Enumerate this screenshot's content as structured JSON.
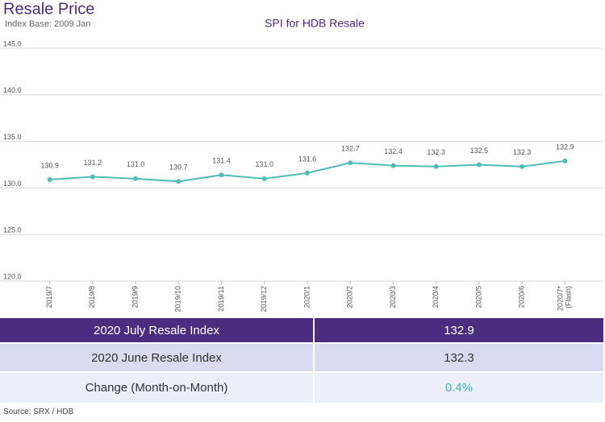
{
  "header": {
    "title": "Resale Price",
    "subtitle": "Index Base: 2009 Jan"
  },
  "chart_data": {
    "type": "line",
    "title": "SPI for HDB Resale",
    "categories": [
      "2019/7",
      "2019/8",
      "2019/9",
      "2019/10",
      "2019/11",
      "2019/12",
      "2020/1",
      "2020/2",
      "2020/3",
      "2020/4",
      "2020/5",
      "2020/6",
      "2020/7* (Flash)"
    ],
    "values": [
      130.9,
      131.2,
      131.0,
      130.7,
      131.4,
      131.0,
      131.6,
      132.7,
      132.4,
      132.3,
      132.5,
      132.3,
      132.9
    ],
    "value_labels": [
      "130.9",
      "131.2",
      "131.0",
      "130.7",
      "131.4",
      "131.0",
      "131.6",
      "132.7",
      "132.4",
      "132.3",
      "132.5",
      "132.3",
      "132.9"
    ],
    "color": "#4dbdb5",
    "ylim": [
      120,
      145
    ],
    "yticks": [
      {
        "value": 120,
        "label": "120.0"
      },
      {
        "value": 125,
        "label": "125.0"
      },
      {
        "value": 130,
        "label": "130.0"
      },
      {
        "value": 135,
        "label": "135.0"
      },
      {
        "value": 140,
        "label": "140.0"
      },
      {
        "value": 145,
        "label": "145.0"
      }
    ],
    "grid": true
  },
  "table": {
    "rows": [
      [
        "2020 July Resale Index",
        "132.9"
      ],
      [
        "2020 June Resale Index",
        "132.3"
      ],
      [
        "Change (Month-on-Month)",
        "0.4%"
      ]
    ]
  },
  "footer": {
    "source": "Source: SRX / HDB"
  }
}
